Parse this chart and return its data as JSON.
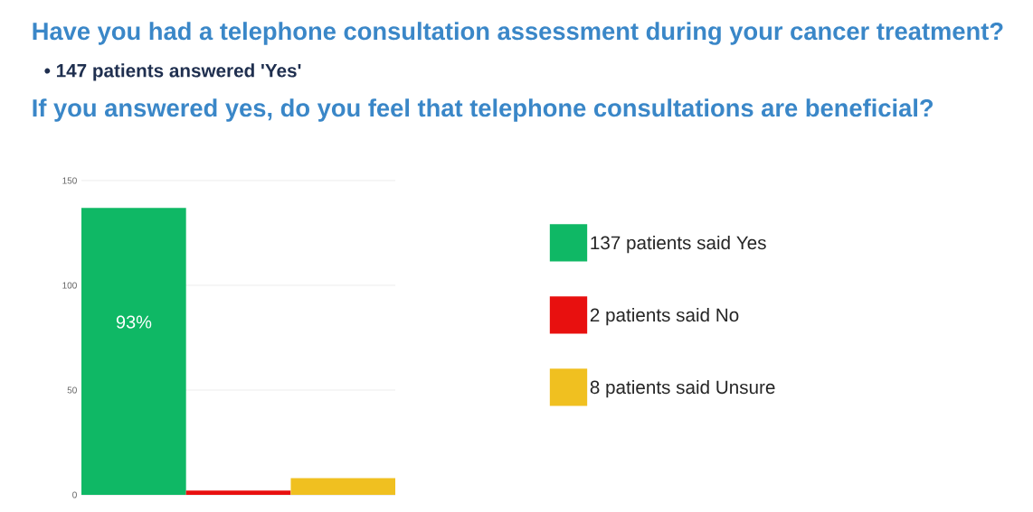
{
  "chart_data": {
    "type": "bar",
    "title": "Have you had a telephone consultation assessment during your cancer treatment?",
    "subtitle": "• 147 patients answered 'Yes'",
    "annotations": [
      "If you answered yes, do you feel that telephone consultations are beneficial?",
      "93%"
    ],
    "categories": [
      null,
      null,
      null
    ],
    "series": [
      {
        "name": "137 patients said Yes",
        "color": "#0fb865",
        "values": [
          137,
          null,
          null
        ]
      },
      {
        "name": "2 patients said No",
        "color": "#e8100f",
        "values": [
          null,
          2,
          null
        ]
      },
      {
        "name": "8 patients said Unsure",
        "color": "#f0c020",
        "values": [
          null,
          null,
          8
        ]
      }
    ],
    "ylim": [
      0,
      150
    ],
    "yticks": [
      0,
      50,
      100,
      150
    ],
    "grid": "y",
    "legend": "right"
  }
}
